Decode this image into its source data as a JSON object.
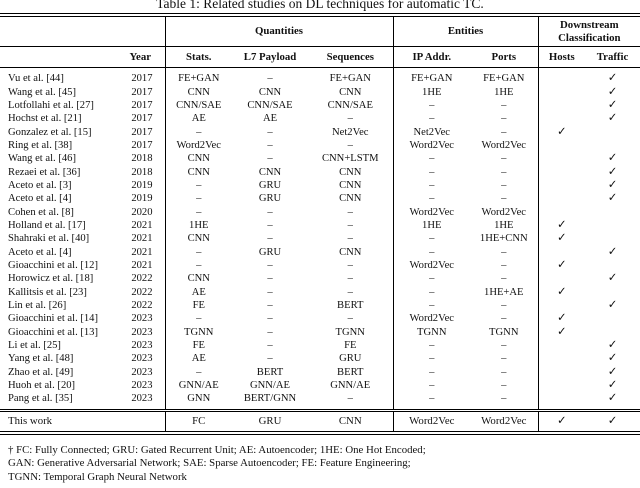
{
  "title": "Table 1: Related studies on DL techniques for automatic TC.",
  "table": {
    "group_headers": [
      {
        "label": "",
        "span": 2
      },
      {
        "label": "Quantities",
        "span": 3
      },
      {
        "label": "Entities",
        "span": 2
      },
      {
        "label": "Downstream Classification",
        "span": 2
      }
    ],
    "columns": [
      "",
      "Year",
      "Stats.",
      "L7 Payload",
      "Sequences",
      "IP Addr.",
      "Ports",
      "Hosts",
      "Traffic"
    ],
    "rows": [
      [
        "Vu et al. [44]",
        "2017",
        "FE+GAN",
        "–",
        "FE+GAN",
        "FE+GAN",
        "FE+GAN",
        "",
        "✓"
      ],
      [
        "Wang et al. [45]",
        "2017",
        "CNN",
        "CNN",
        "CNN",
        "1HE",
        "1HE",
        "",
        "✓"
      ],
      [
        "Lotfollahi et al. [27]",
        "2017",
        "CNN/SAE",
        "CNN/SAE",
        "CNN/SAE",
        "–",
        "–",
        "",
        "✓"
      ],
      [
        "Hochst et al. [21]",
        "2017",
        "AE",
        "AE",
        "–",
        "–",
        "–",
        "",
        "✓"
      ],
      [
        "Gonzalez et al. [15]",
        "2017",
        "–",
        "–",
        "Net2Vec",
        "Net2Vec",
        "–",
        "✓",
        ""
      ],
      [
        "Ring et al. [38]",
        "2017",
        "Word2Vec",
        "–",
        "–",
        "Word2Vec",
        "Word2Vec",
        "",
        ""
      ],
      [
        "Wang et al. [46]",
        "2018",
        "CNN",
        "–",
        "CNN+LSTM",
        "–",
        "–",
        "",
        "✓"
      ],
      [
        "Rezaei et al. [36]",
        "2018",
        "CNN",
        "CNN",
        "CNN",
        "–",
        "–",
        "",
        "✓"
      ],
      [
        "Aceto et al. [3]",
        "2019",
        "–",
        "GRU",
        "CNN",
        "–",
        "–",
        "",
        "✓"
      ],
      [
        "Aceto et al. [4]",
        "2019",
        "–",
        "GRU",
        "CNN",
        "–",
        "–",
        "",
        "✓"
      ],
      [
        "Cohen et al. [8]",
        "2020",
        "–",
        "–",
        "–",
        "Word2Vec",
        "Word2Vec",
        "",
        ""
      ],
      [
        "Holland et al. [17]",
        "2021",
        "1HE",
        "–",
        "–",
        "1HE",
        "1HE",
        "✓",
        ""
      ],
      [
        "Shahraki et al. [40]",
        "2021",
        "CNN",
        "–",
        "–",
        "–",
        "1HE+CNN",
        "✓",
        ""
      ],
      [
        "Aceto et al. [4]",
        "2021",
        "–",
        "GRU",
        "CNN",
        "–",
        "–",
        "",
        "✓"
      ],
      [
        "Gioacchini et al. [12]",
        "2021",
        "–",
        "–",
        "–",
        "Word2Vec",
        "–",
        "✓",
        ""
      ],
      [
        "Horowicz et al. [18]",
        "2022",
        "CNN",
        "–",
        "–",
        "–",
        "–",
        "",
        "✓"
      ],
      [
        "Kallitsis et al. [23]",
        "2022",
        "AE",
        "–",
        "–",
        "–",
        "1HE+AE",
        "✓",
        ""
      ],
      [
        "Lin et al. [26]",
        "2022",
        "FE",
        "–",
        "BERT",
        "–",
        "–",
        "",
        "✓"
      ],
      [
        "Gioacchini et al. [14]",
        "2023",
        "–",
        "–",
        "–",
        "Word2Vec",
        "–",
        "✓",
        ""
      ],
      [
        "Gioacchini et al. [13]",
        "2023",
        "TGNN",
        "–",
        "TGNN",
        "TGNN",
        "TGNN",
        "✓",
        ""
      ],
      [
        "Li et al. [25]",
        "2023",
        "FE",
        "–",
        "FE",
        "–",
        "–",
        "",
        "✓"
      ],
      [
        "Yang et al. [48]",
        "2023",
        "AE",
        "–",
        "GRU",
        "–",
        "–",
        "",
        "✓"
      ],
      [
        "Zhao et al. [49]",
        "2023",
        "–",
        "BERT",
        "BERT",
        "–",
        "–",
        "",
        "✓"
      ],
      [
        "Huoh et al. [20]",
        "2023",
        "GNN/AE",
        "GNN/AE",
        "GNN/AE",
        "–",
        "–",
        "",
        "✓"
      ],
      [
        "Pang et al. [35]",
        "2023",
        "GNN",
        "BERT/GNN",
        "–",
        "–",
        "–",
        "",
        "✓"
      ]
    ],
    "summary_row": [
      "This work",
      "",
      "FC",
      "GRU",
      "CNN",
      "Word2Vec",
      "Word2Vec",
      "✓",
      "✓"
    ]
  },
  "footnotes": [
    "† FC: Fully Connected; GRU: Gated Recurrent Unit; AE: Autoencoder; 1HE: One Hot Encoded;",
    "GAN: Generative Adversarial Network; SAE: Sparse Autoencoder; FE: Feature Engineering;",
    "TGNN: Temporal Graph Neural Network"
  ],
  "colors": {
    "text": "#111111",
    "rule": "#000000",
    "background": "#ffffff"
  }
}
